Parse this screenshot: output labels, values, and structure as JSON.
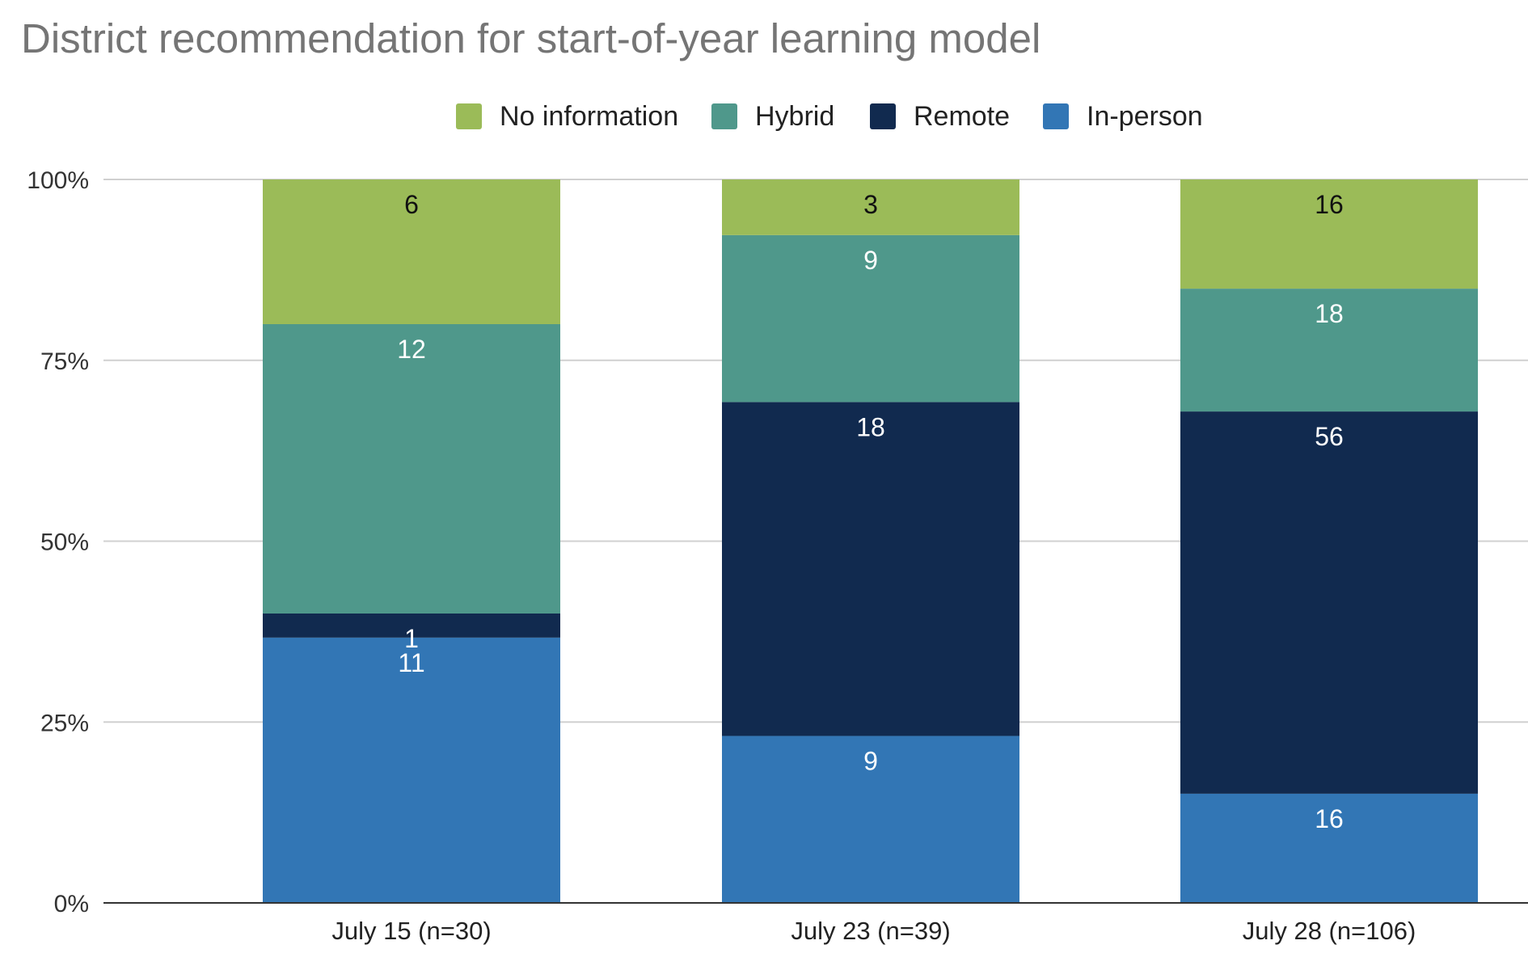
{
  "chart_data": {
    "type": "bar",
    "stacked": true,
    "percent_stacked": true,
    "title": "District recommendation for start-of-year learning model",
    "xlabel": "",
    "ylabel": "",
    "ylim": [
      0,
      100
    ],
    "y_ticks": [
      "0%",
      "25%",
      "50%",
      "75%",
      "100%"
    ],
    "grid": true,
    "legend_position": "top",
    "categories": [
      "July 15 (n=30)",
      "July 23 (n=39)",
      "July 28 (n=106)"
    ],
    "series": [
      {
        "name": "In-person",
        "color": "#3276b5",
        "values": [
          11,
          9,
          16
        ]
      },
      {
        "name": "Remote",
        "color": "#112a4f",
        "values": [
          1,
          18,
          56
        ]
      },
      {
        "name": "Hybrid",
        "color": "#4f988b",
        "values": [
          12,
          9,
          18
        ]
      },
      {
        "name": "No information",
        "color": "#9bbb58",
        "values": [
          6,
          3,
          16
        ]
      }
    ],
    "legend_order": [
      "No information",
      "Hybrid",
      "Remote",
      "In-person"
    ]
  }
}
